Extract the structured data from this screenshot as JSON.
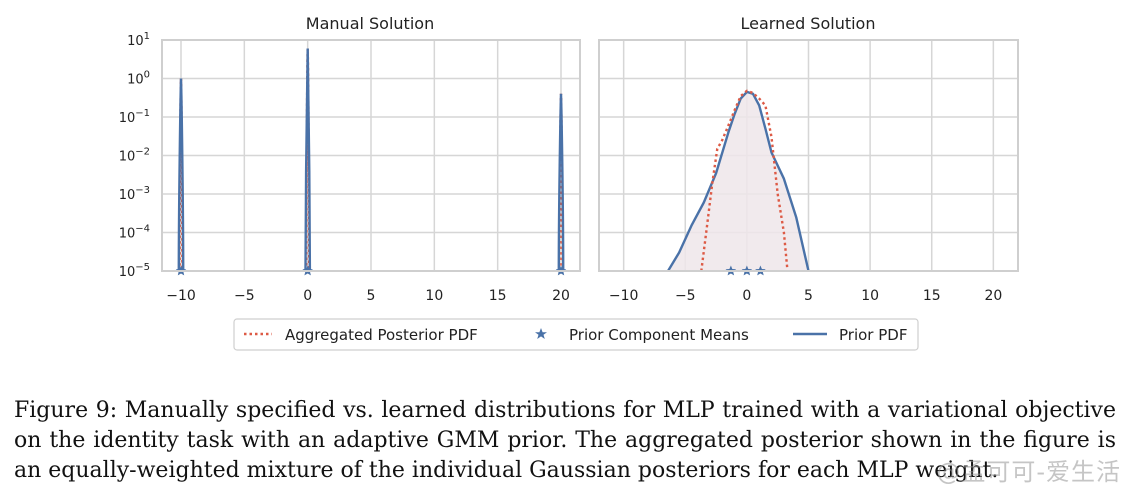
{
  "figure": {
    "panels": [
      {
        "title": "Manual Solution"
      },
      {
        "title": "Learned Solution"
      }
    ],
    "legend": {
      "posterior": "Aggregated Posterior PDF",
      "means": "Prior Component Means",
      "prior": "Prior PDF"
    }
  },
  "caption": {
    "text": "Figure 9: Manually specified vs. learned distributions for MLP trained with a variational objective on the identity task with an adaptive GMM prior. The aggregated posterior shown in the figure is an equally-weighted mixture of the individual Gaussian posteriors for each MLP weight."
  },
  "watermark": {
    "text": "@孟可可-爱生活"
  },
  "colors": {
    "posterior": "#dd5a45",
    "prior": "#4a72a8",
    "means": "#4a72a8",
    "fill": "#efe6ea",
    "grid": "#d6d6d6",
    "frame": "#cfcfcf"
  },
  "chart_data": [
    {
      "type": "line",
      "title": "Manual Solution",
      "yscale": "log",
      "xlim": [
        -11.5,
        21.5
      ],
      "ylim": [
        1e-05,
        10
      ],
      "xticks": [
        -10,
        -5,
        0,
        5,
        10,
        15,
        20
      ],
      "xtick_labels": [
        "−10",
        "−5",
        "0",
        "5",
        "10",
        "15",
        "20"
      ],
      "yticks": [
        {
          "mantissa": "10",
          "exp": "−5"
        },
        {
          "mantissa": "10",
          "exp": "−4"
        },
        {
          "mantissa": "10",
          "exp": "−3"
        },
        {
          "mantissa": "10",
          "exp": "−2"
        },
        {
          "mantissa": "10",
          "exp": "−1"
        },
        {
          "mantissa": "10",
          "exp": "0"
        },
        {
          "mantissa": "10",
          "exp": "1"
        }
      ],
      "grid": true,
      "series": [
        {
          "name": "Aggregated Posterior PDF",
          "style": "dotted",
          "spikes": [
            {
              "x": -10,
              "peak": 1.0
            },
            {
              "x": 0,
              "peak": 6.0
            },
            {
              "x": 20,
              "peak": 0.4
            }
          ]
        },
        {
          "name": "Prior PDF",
          "style": "solid",
          "spikes": [
            {
              "x": -10,
              "peak": 1.0
            },
            {
              "x": 0,
              "peak": 6.0
            },
            {
              "x": 20,
              "peak": 0.4
            }
          ]
        }
      ],
      "component_means": [
        -10,
        0,
        20
      ]
    },
    {
      "type": "line",
      "title": "Learned Solution",
      "yscale": "log",
      "xlim": [
        -12,
        22
      ],
      "ylim": [
        1e-05,
        10
      ],
      "xticks": [
        -10,
        -5,
        0,
        5,
        10,
        15,
        20
      ],
      "xtick_labels": [
        "−10",
        "−5",
        "0",
        "5",
        "10",
        "15",
        "20"
      ],
      "grid": true,
      "series": [
        {
          "name": "Prior PDF",
          "style": "solid",
          "x": [
            -6.4,
            -5.5,
            -4.5,
            -3.5,
            -2.5,
            -1.5,
            -1.0,
            -0.5,
            0.0,
            0.5,
            1.0,
            1.5,
            2.0,
            3.0,
            4.0,
            5.0
          ],
          "y": [
            1e-05,
            3e-05,
            0.00015,
            0.0006,
            0.0035,
            0.04,
            0.12,
            0.3,
            0.45,
            0.4,
            0.2,
            0.05,
            0.012,
            0.0025,
            0.00025,
            1e-05
          ]
        },
        {
          "name": "Aggregated Posterior PDF",
          "style": "dotted",
          "x": [
            -3.7,
            -3.3,
            -2.8,
            -2.4,
            -2.0,
            -1.5,
            -1.0,
            -0.5,
            0.0,
            0.5,
            1.0,
            1.5,
            2.0,
            2.5,
            3.0,
            3.3
          ],
          "y": [
            1e-05,
            0.0001,
            0.002,
            0.015,
            0.025,
            0.06,
            0.15,
            0.35,
            0.48,
            0.42,
            0.3,
            0.2,
            0.03,
            0.001,
            0.0001,
            1e-05
          ]
        }
      ],
      "component_means": [
        -1.3,
        0.0,
        1.1
      ]
    }
  ]
}
